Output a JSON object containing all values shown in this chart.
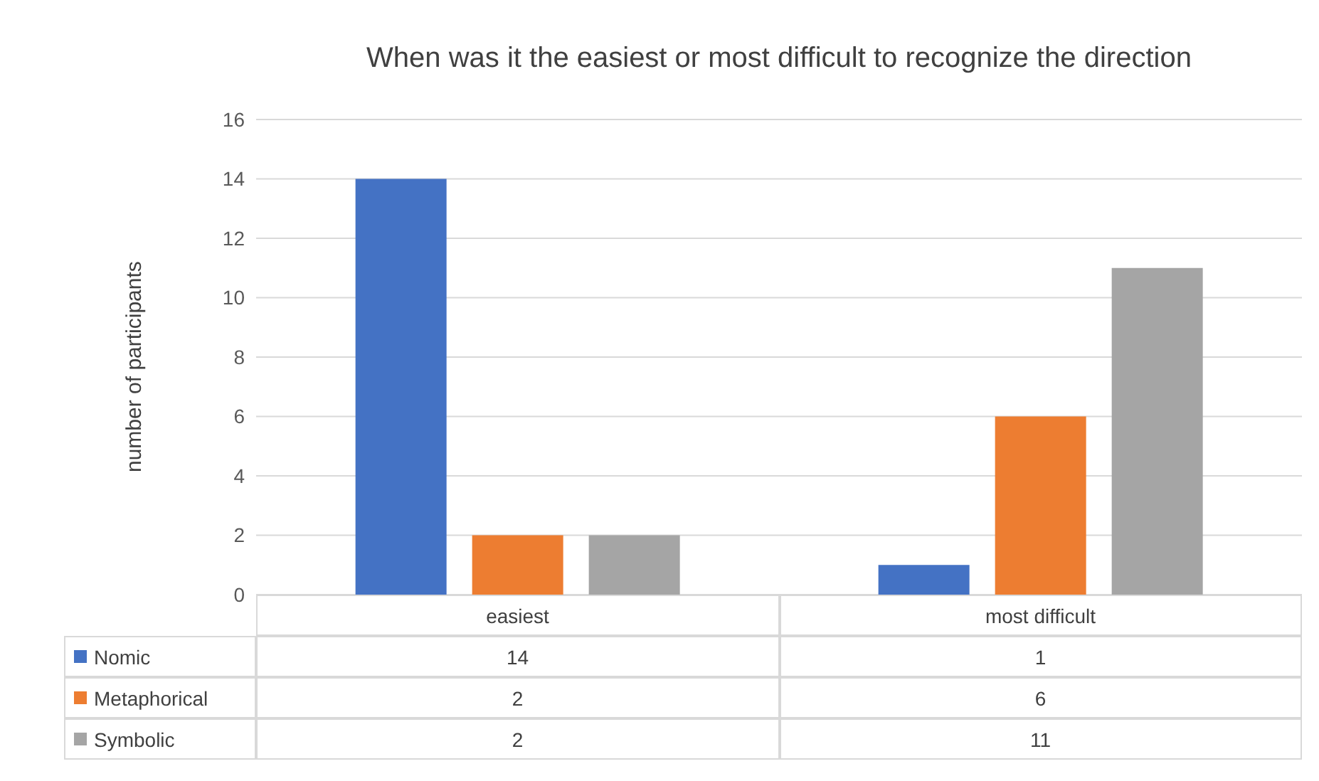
{
  "chart_data": {
    "type": "bar",
    "title": "When was it the easiest or most difficult to recognize the direction",
    "ylabel": "number of participants",
    "categories": [
      "easiest",
      "most difficult"
    ],
    "series": [
      {
        "name": "Nomic",
        "color": "#4472c4",
        "values": [
          14,
          1
        ]
      },
      {
        "name": "Metaphorical",
        "color": "#ed7d31",
        "values": [
          2,
          6
        ]
      },
      {
        "name": "Symbolic",
        "color": "#a5a5a5",
        "values": [
          2,
          11
        ]
      }
    ],
    "ylim": [
      0,
      16
    ],
    "yticks": [
      0,
      2,
      4,
      6,
      8,
      10,
      12,
      14,
      16
    ],
    "grid": "y",
    "legend": "bottom",
    "data_labels": true
  }
}
